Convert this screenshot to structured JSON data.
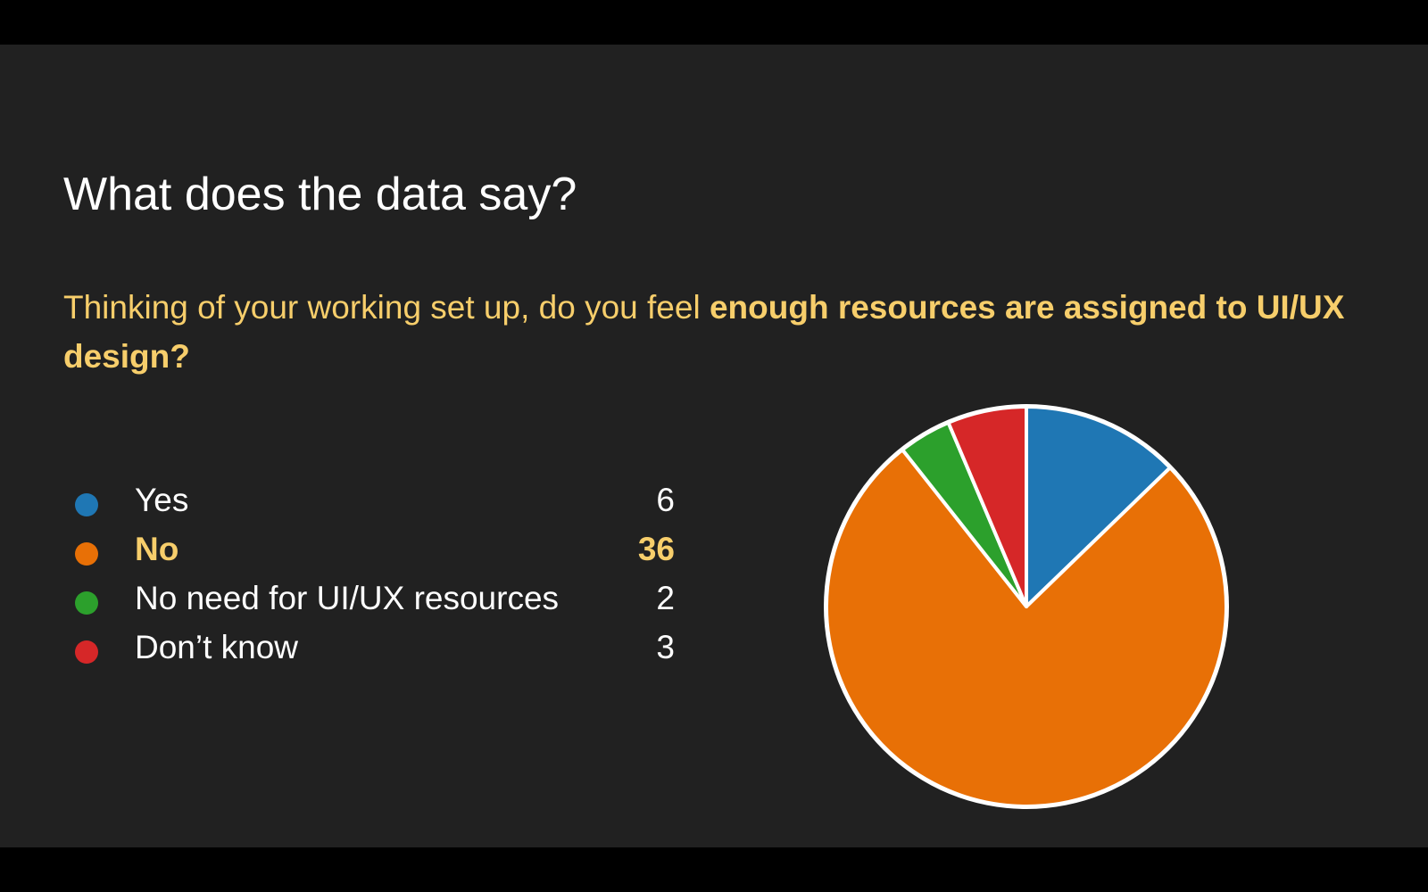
{
  "slide": {
    "title": "What does the data say?",
    "question_normal": "Thinking of your working set up, do you feel ",
    "question_bold": "enough resources are assigned to UI/UX design?"
  },
  "colors": {
    "background": "#212121",
    "letterbox": "#000000",
    "accent": "#f7ce6b",
    "slice_border": "#ffffff"
  },
  "chart_data": {
    "type": "pie",
    "categories": [
      "Yes",
      "No",
      "No need for UI/UX resources",
      "Don’t know"
    ],
    "values": [
      6,
      36,
      2,
      3
    ],
    "colors": [
      "#1f77b4",
      "#e87006",
      "#2ca02c",
      "#d62728"
    ],
    "highlighted": "No"
  },
  "legend": {
    "items": [
      {
        "label": "Yes",
        "value": "6",
        "color": "#1f77b4"
      },
      {
        "label": "No",
        "value": "36",
        "color": "#e87006"
      },
      {
        "label": "No need for UI/UX resources",
        "value": "2",
        "color": "#2ca02c"
      },
      {
        "label": "Don’t know",
        "value": "3",
        "color": "#d62728"
      }
    ]
  }
}
